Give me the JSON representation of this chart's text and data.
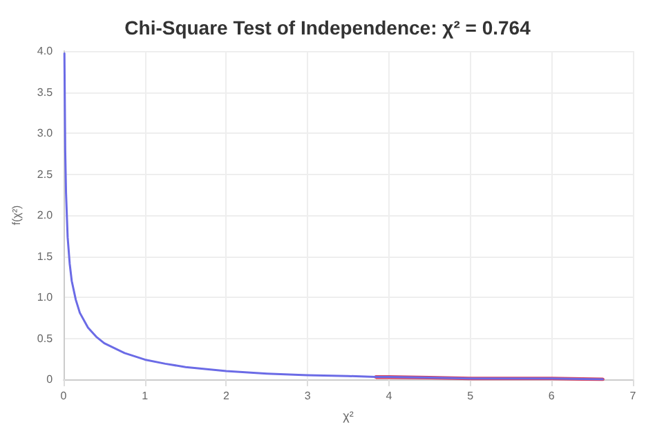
{
  "chart_data": {
    "type": "line",
    "title": "Chi-Square Test of Independence: χ² = 0.764",
    "xlabel": "χ²",
    "ylabel": "f(χ²)",
    "xlim": [
      0,
      7
    ],
    "xticks": [
      0,
      1,
      2,
      3,
      4,
      5,
      6,
      7
    ],
    "ylim": [
      0,
      4
    ],
    "yticks": [
      0,
      0.5,
      {
        "value": 1,
        "label": "1.0"
      },
      1.5,
      {
        "value": 2,
        "label": "2.0"
      },
      2.5,
      {
        "value": 3,
        "label": "3.0"
      },
      3.5,
      {
        "value": 4,
        "label": "4.0"
      }
    ],
    "grid": true,
    "marker": "none",
    "line_style": "solid",
    "series": [
      {
        "color": "#6b6be6",
        "x": [
          0.01,
          0.02,
          0.03,
          0.05,
          0.075,
          0.1,
          0.15,
          0.2,
          0.3,
          0.4,
          0.5,
          0.75,
          1,
          1.25,
          1.5,
          2,
          2.5,
          3,
          3.5,
          3.84,
          4,
          4.5,
          5,
          5.5,
          6,
          6.63
        ],
        "values": [
          3.97,
          2.79,
          2.27,
          1.73,
          1.41,
          1.2,
          0.97,
          0.81,
          0.63,
          0.52,
          0.44,
          0.32,
          0.24,
          0.19,
          0.15,
          0.1,
          0.07,
          0.05,
          0.04,
          0.03,
          0.03,
          0.02,
          0.01,
          0.01,
          0.01,
          0
        ]
      },
      {
        "type": "area",
        "color": "#d9405a",
        "x": [
          3.84,
          4,
          4.5,
          5,
          5.5,
          6,
          6.63
        ],
        "values": [
          0.03,
          0.03,
          0.02,
          0.01,
          0.01,
          0.01,
          0
        ]
      }
    ]
  }
}
